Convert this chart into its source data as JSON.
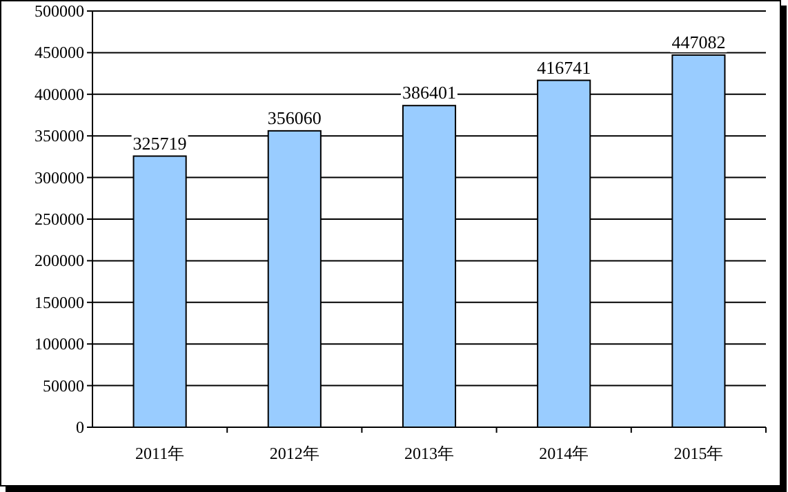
{
  "chart_data": {
    "type": "bar",
    "categories": [
      "2011年",
      "2012年",
      "2013年",
      "2014年",
      "2015年"
    ],
    "values": [
      325719,
      356060,
      386401,
      416741,
      447082
    ],
    "color": "#99ccff",
    "ylim": [
      0,
      500000
    ],
    "yticks": [
      0,
      50000,
      100000,
      150000,
      200000,
      250000,
      300000,
      350000,
      400000,
      450000,
      500000
    ],
    "grid": "y",
    "data_labels": true
  }
}
